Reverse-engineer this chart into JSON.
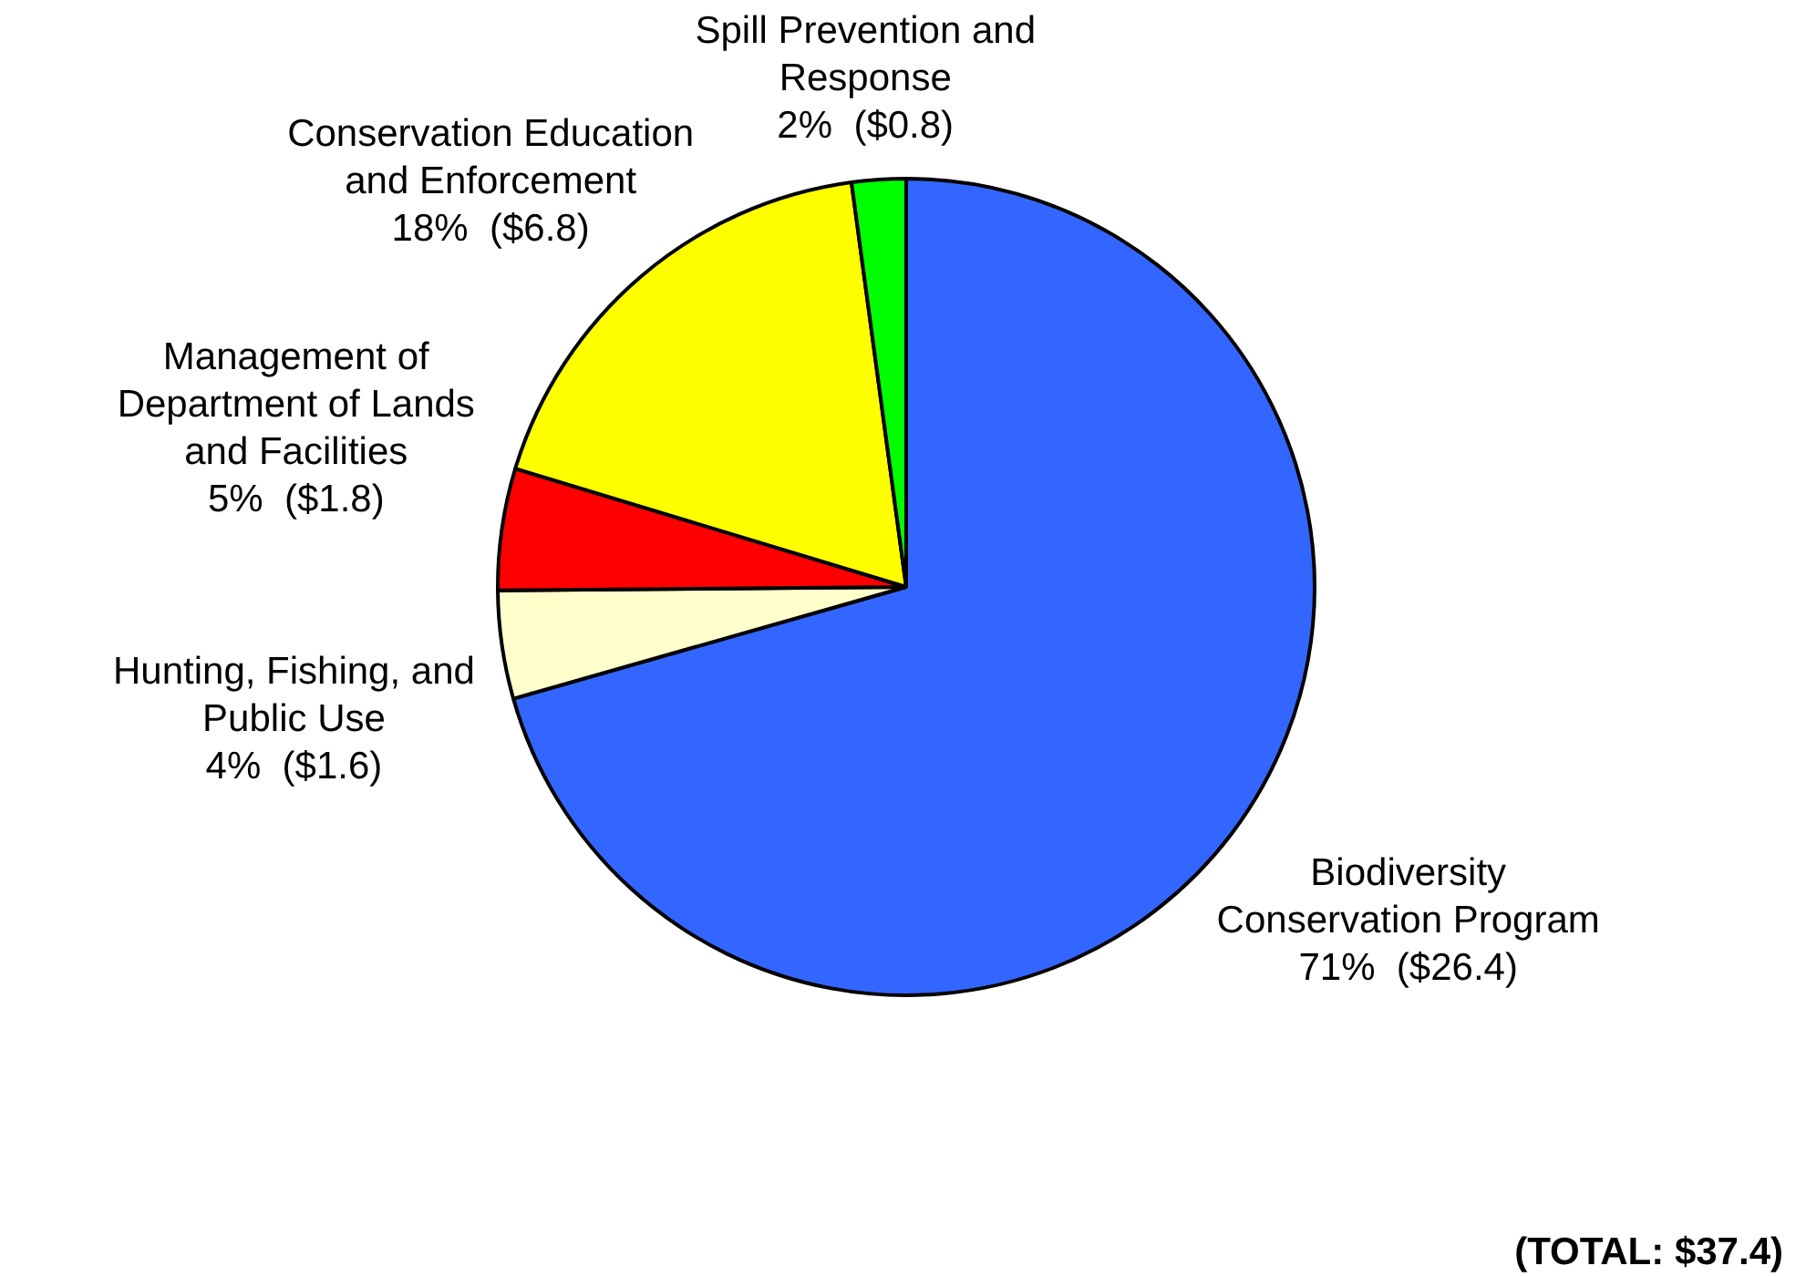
{
  "chart_data": {
    "type": "pie",
    "categories": [
      "Biodiversity Conservation Program",
      "Hunting, Fishing, and Public Use",
      "Management of Department of Lands and Facilities",
      "Conservation Education and Enforcement",
      "Spill Prevention and Response"
    ],
    "values": [
      26.4,
      1.6,
      1.8,
      6.8,
      0.8
    ],
    "colors": [
      "#3366ff",
      "#ffffcc",
      "#ff0000",
      "#ffff00",
      "#00ff00"
    ],
    "value_labels": [
      "71%  ($26.4)",
      "4%  ($1.6)",
      "5%  ($1.8)",
      "18%  ($6.8)",
      "2%  ($0.8)"
    ],
    "annotations": [
      "(TOTAL: $37.4)"
    ]
  }
}
